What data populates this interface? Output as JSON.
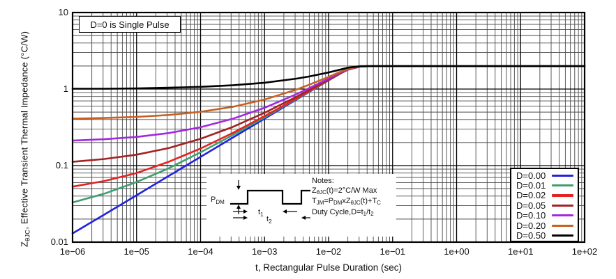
{
  "chart_data": {
    "type": "line",
    "x_scale": "log",
    "y_scale": "log",
    "xlim": [
      1e-06,
      100
    ],
    "ylim": [
      0.01,
      10
    ],
    "grid": "full log-log, major and minor lines",
    "legend_position": "bottom-right",
    "xlabel": "t, Rectangular Pulse Duration (sec)",
    "ylabel": "ZθJC, Effective Transient Thermal Impedance (°C/W)",
    "x_tick_labels": [
      "1e−06",
      "1e−05",
      "1e−04",
      "1e−03",
      "1e−02",
      "1e−01",
      "1e+00",
      "1e+01",
      "1e+02"
    ],
    "y_tick_labels": [
      "10",
      "1",
      "0.1",
      "0.01"
    ],
    "annotation": "D=0 is Single Pulse",
    "x": [
      1e-06,
      3.16e-06,
      1e-05,
      3.16e-05,
      0.0001,
      0.000316,
      0.001,
      0.00316,
      0.005,
      0.01,
      0.015,
      0.02,
      0.0316,
      0.05,
      0.1,
      1,
      10,
      100
    ],
    "series": [
      {
        "name": "D=0.00",
        "color": "#2222dd",
        "values": [
          0.013,
          0.023,
          0.041,
          0.073,
          0.13,
          0.231,
          0.411,
          0.731,
          0.919,
          1.3,
          1.58,
          1.79,
          1.97,
          2.0,
          2.0,
          2.0,
          2.0,
          2.0
        ]
      },
      {
        "name": "D=0.01",
        "color": "#3f9e6e",
        "values": [
          0.033,
          0.043,
          0.061,
          0.092,
          0.149,
          0.249,
          0.427,
          0.744,
          0.93,
          1.31,
          1.59,
          1.79,
          1.97,
          2.0,
          2.0,
          2.0,
          2.0,
          2.0
        ]
      },
      {
        "name": "D=0.02",
        "color": "#e42222",
        "values": [
          0.053,
          0.063,
          0.08,
          0.112,
          0.167,
          0.266,
          0.443,
          0.756,
          0.941,
          1.31,
          1.59,
          1.8,
          1.97,
          2.0,
          2.0,
          2.0,
          2.0,
          2.0
        ]
      },
      {
        "name": "D=0.05",
        "color": "#a22222",
        "values": [
          0.112,
          0.122,
          0.139,
          0.169,
          0.224,
          0.319,
          0.49,
          0.794,
          0.973,
          1.33,
          1.6,
          1.8,
          1.97,
          2.0,
          2.0,
          2.0,
          2.0,
          2.0
        ]
      },
      {
        "name": "D=0.10",
        "color": "#a428e0",
        "values": [
          0.212,
          0.221,
          0.237,
          0.266,
          0.317,
          0.408,
          0.57,
          0.858,
          1.03,
          1.37,
          1.63,
          1.81,
          1.98,
          2.0,
          2.0,
          2.0,
          2.0,
          2.0
        ]
      },
      {
        "name": "D=0.20",
        "color": "#c8601f",
        "values": [
          0.41,
          0.419,
          0.433,
          0.458,
          0.504,
          0.585,
          0.729,
          0.985,
          1.14,
          1.44,
          1.67,
          1.83,
          1.98,
          2.0,
          2.0,
          2.0,
          2.0,
          2.0
        ]
      },
      {
        "name": "D=0.50",
        "color": "#000000",
        "values": [
          1.01,
          1.01,
          1.02,
          1.04,
          1.07,
          1.12,
          1.21,
          1.37,
          1.46,
          1.65,
          1.79,
          1.9,
          1.99,
          2.0,
          2.0,
          2.0,
          2.0,
          2.0
        ]
      }
    ]
  },
  "axes": {
    "y_label_parts": {
      "main": "Z",
      "sub": "θJC",
      "rest": ", Effective Transient Thermal Impedance (°C/W)"
    },
    "x_label": "t, Rectangular Pulse Duration (sec)"
  },
  "notes": {
    "title": "Notes:",
    "lines": [
      [
        {
          "t": "Z"
        },
        {
          "s": "θJC"
        },
        {
          "t": "(t)=2°C/W Max"
        }
      ],
      [
        {
          "t": "T"
        },
        {
          "s": "JM"
        },
        {
          "t": "=P"
        },
        {
          "s": "DM"
        },
        {
          "t": "xZ"
        },
        {
          "s": "θJC"
        },
        {
          "t": "(t)+T"
        },
        {
          "s": "C"
        }
      ],
      [
        {
          "t": "Duty Cycle,D=t"
        },
        {
          "s": "1"
        },
        {
          "t": "/t"
        },
        {
          "s": "2"
        }
      ]
    ]
  },
  "pulse_diagram": {
    "p_main": "P",
    "p_sub": "DM",
    "t1_main": "t",
    "t1_sub": "1",
    "t2_main": "t",
    "t2_sub": "2"
  }
}
